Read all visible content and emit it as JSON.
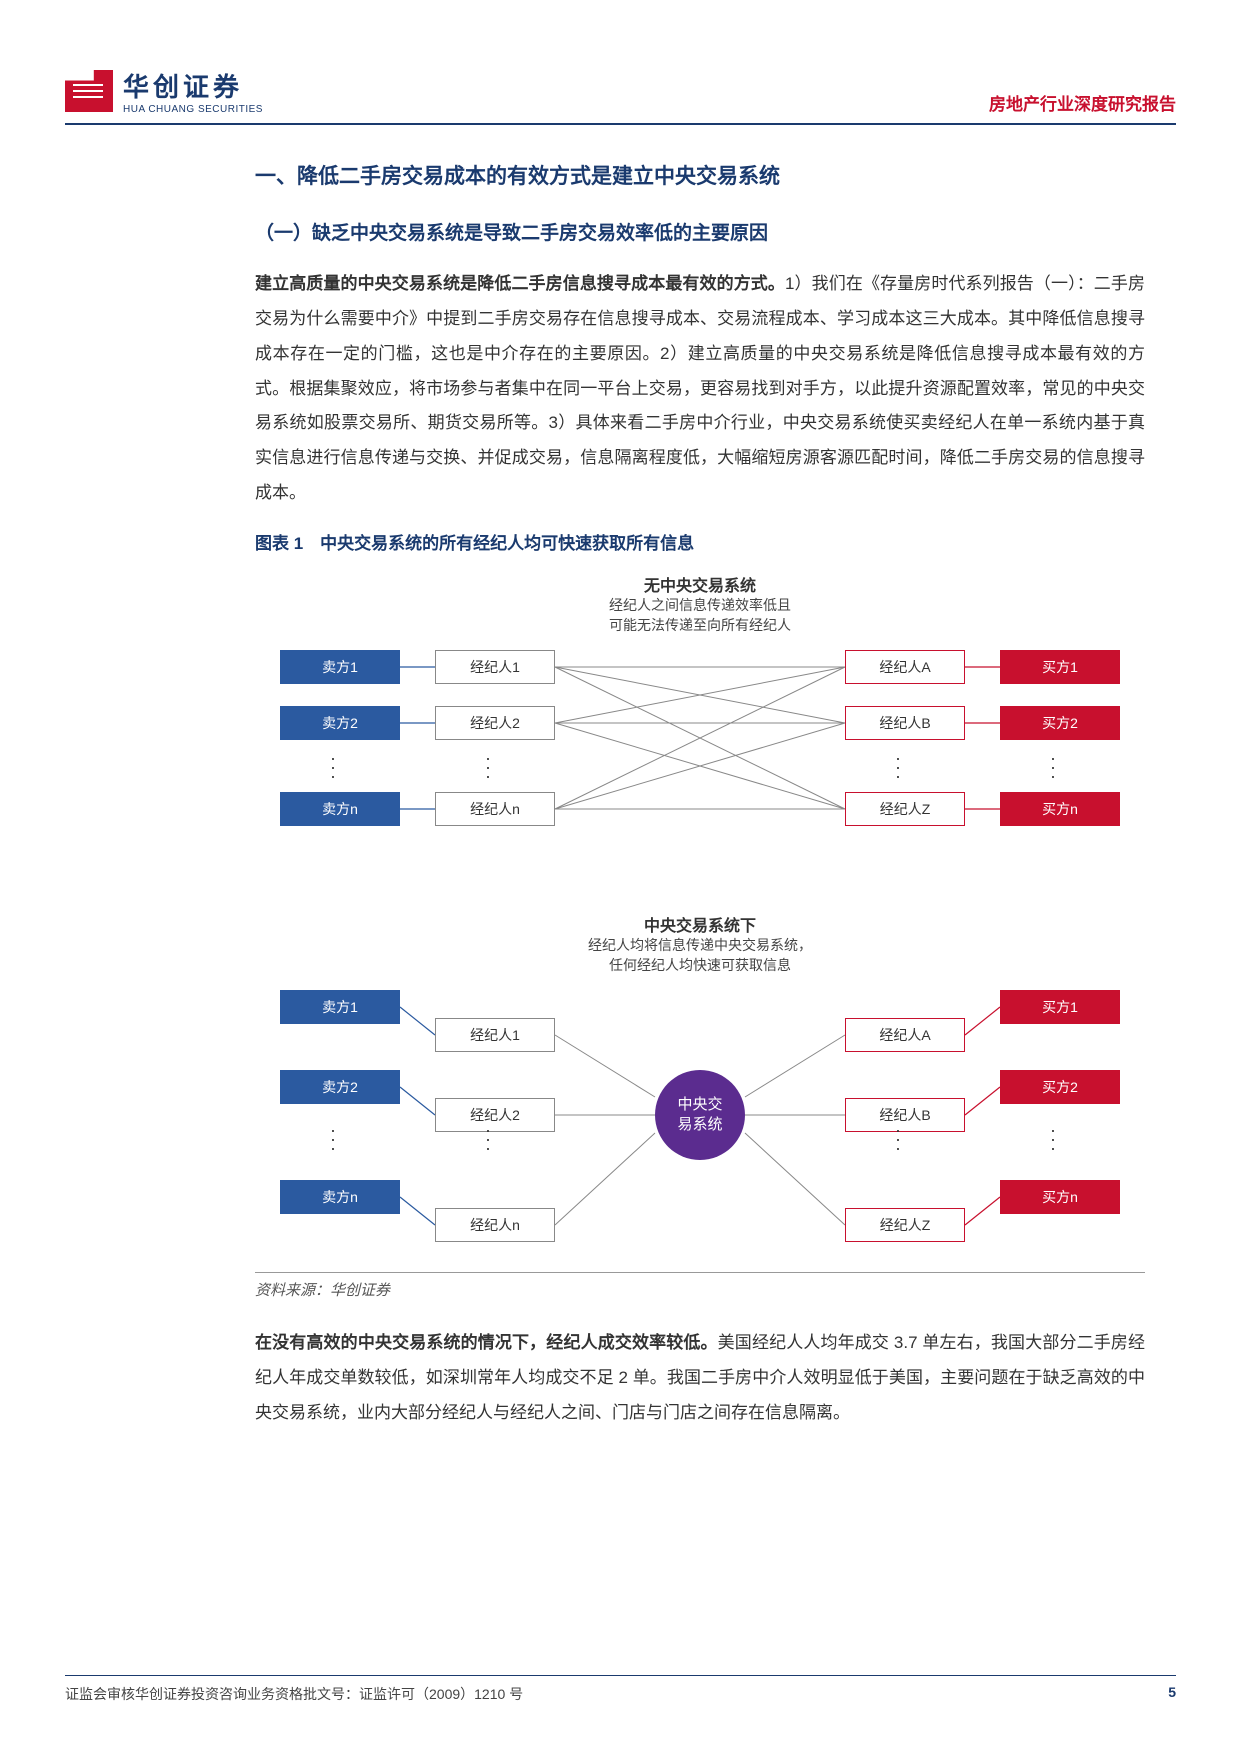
{
  "brand": {
    "cn": "华创证券",
    "en": "HUA CHUANG SECURITIES",
    "logo_color": "#c8102e",
    "text_color": "#1a3a6e"
  },
  "header": {
    "doctype": "房地产行业深度研究报告",
    "doctype_color": "#c8102e"
  },
  "colors": {
    "h1": "#1a3a6e",
    "h2": "#1a3a6e",
    "fig_title": "#1a3a6e",
    "seller_bg": "#2b5aa0",
    "buyer_bg": "#c8102e",
    "agent_border": "#888888",
    "agentR_border_top": "#c8102e",
    "hub_bg": "#5b2c8f",
    "line_gray": "#888888",
    "line_blue": "#2b5aa0",
    "line_red": "#c8102e",
    "pagenum": "#1a3a6e"
  },
  "sections": {
    "h1": "一、降低二手房交易成本的有效方式是建立中央交易系统",
    "h2_1": "（一）缺乏中央交易系统是导致二手房交易效率低的主要原因",
    "p1_lead": "建立高质量的中央交易系统是降低二手房信息搜寻成本最有效的方式。",
    "p1_body": "1）我们在《存量房时代系列报告（一）：二手房交易为什么需要中介》中提到二手房交易存在信息搜寻成本、交易流程成本、学习成本这三大成本。其中降低信息搜寻成本存在一定的门槛，这也是中介存在的主要原因。2）建立高质量的中央交易系统是降低信息搜寻成本最有效的方式。根据集聚效应，将市场参与者集中在同一平台上交易，更容易找到对手方，以此提升资源配置效率，常见的中央交易系统如股票交易所、期货交易所等。3）具体来看二手房中介行业，中央交易系统使买卖经纪人在单一系统内基于真实信息进行信息传递与交换、并促成交易，信息隔离程度低，大幅缩短房源客源匹配时间，降低二手房交易的信息搜寻成本。",
    "fig1_title": "图表 1　中央交易系统的所有经纪人均可快速获取所有信息",
    "source": "资料来源：华创证券",
    "p2_lead": "在没有高效的中央交易系统的情况下，经纪人成交效率较低。",
    "p2_body": "美国经纪人人均年成交 3.7 单左右，我国大部分二手房经纪人年成交单数较低，如深圳常年人均成交不足 2 单。我国二手房中介人效明显低于美国，主要问题在于缺乏高效的中央交易系统，业内大部分经纪人与经纪人之间、门店与门店之间存在信息隔离。"
  },
  "diagram1": {
    "title": "无中央交易系统",
    "subtitle": "经纪人之间信息传递效率低且\n可能无法传递至向所有经纪人",
    "sellers": [
      "卖方1",
      "卖方2",
      "卖方n"
    ],
    "agentsL": [
      "经纪人1",
      "经纪人2",
      "经纪人n"
    ],
    "agentsR": [
      "经纪人A",
      "经纪人B",
      "经纪人Z"
    ],
    "buyers": [
      "买方1",
      "买方2",
      "买方n"
    ]
  },
  "diagram2": {
    "title": "中央交易系统下",
    "subtitle": "经纪人均将信息传递中央交易系统，\n任何经纪人均快速可获取信息",
    "hub": "中央交\n易系统",
    "sellers": [
      "卖方1",
      "卖方2",
      "卖方n"
    ],
    "agentsL": [
      "经纪人1",
      "经纪人2",
      "经纪人n"
    ],
    "agentsR": [
      "经纪人A",
      "经纪人B",
      "经纪人Z"
    ],
    "buyers": [
      "买方1",
      "买方2",
      "买方n"
    ]
  },
  "footer": {
    "left": "证监会审核华创证券投资咨询业务资格批文号：证监许可（2009）1210 号",
    "pagenum": "5"
  }
}
